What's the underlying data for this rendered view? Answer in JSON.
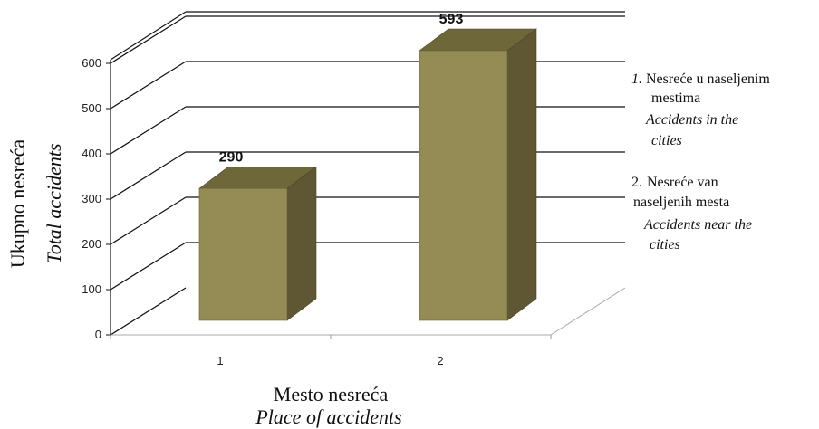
{
  "chart_data": {
    "type": "bar",
    "categories": [
      "1",
      "2"
    ],
    "values": [
      290,
      593
    ],
    "data_labels": [
      "290",
      "593"
    ],
    "ylim": [
      0,
      600
    ],
    "yticks": [
      "0",
      "100",
      "200",
      "300",
      "400",
      "500",
      "600"
    ],
    "ylabel": "Ukupno nesreća",
    "ylabel_en": "Total accidents",
    "xlabel": "Mesto nesreća",
    "xlabel_en": "Place of accidents",
    "grid": true,
    "three_d": true,
    "bar_color": "#958b54",
    "bar_side_color": "#5f5734",
    "bar_top_color": "#6e6739",
    "legend_placement": "right",
    "legend": [
      {
        "num": "1.",
        "lines": [
          "Nesreće u naseljenim",
          "mestima"
        ],
        "lines_en": [
          "Accidents in the",
          "cities"
        ]
      },
      {
        "num": "2.",
        "lines": [
          "Nesreće van",
          "naseljenih mesta"
        ],
        "lines_en": [
          "Accidents near the",
          "cities"
        ]
      }
    ]
  }
}
